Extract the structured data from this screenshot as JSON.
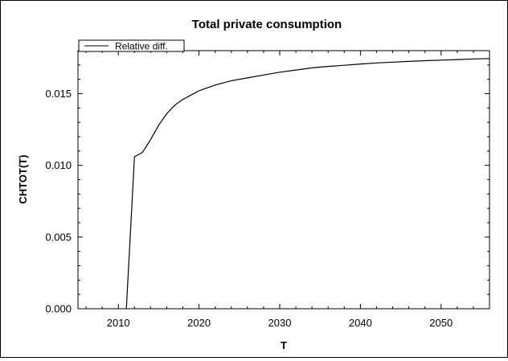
{
  "chart_data": {
    "type": "line",
    "title": "Total private consumption",
    "xlabel": "T",
    "ylabel": "CHTOT(T)",
    "xlim": [
      2005,
      2056
    ],
    "ylim": [
      0.0,
      0.018
    ],
    "x_major_ticks": [
      2010,
      2020,
      2030,
      2040,
      2050
    ],
    "y_major_ticks": [
      0.0,
      0.005,
      0.01,
      0.015
    ],
    "y_tick_labels": [
      "0.000",
      "0.005",
      "0.010",
      "0.015"
    ],
    "grid": false,
    "legend_position": "top-left",
    "series": [
      {
        "name": "Relative diff.",
        "color": "#000000",
        "x": [
          2011,
          2012,
          2013,
          2014,
          2015,
          2016,
          2017,
          2018,
          2019,
          2020,
          2022,
          2024,
          2026,
          2028,
          2030,
          2032,
          2034,
          2036,
          2038,
          2040,
          2042,
          2044,
          2046,
          2048,
          2050,
          2052,
          2054,
          2056
        ],
        "y": [
          0.0,
          0.0106,
          0.0109,
          0.0118,
          0.0128,
          0.0136,
          0.0142,
          0.0146,
          0.0149,
          0.0152,
          0.0156,
          0.0159,
          0.0161,
          0.0163,
          0.0165,
          0.01665,
          0.0168,
          0.0169,
          0.01698,
          0.01707,
          0.01714,
          0.0172,
          0.01725,
          0.0173,
          0.01734,
          0.01738,
          0.01742,
          0.01745
        ]
      }
    ]
  }
}
